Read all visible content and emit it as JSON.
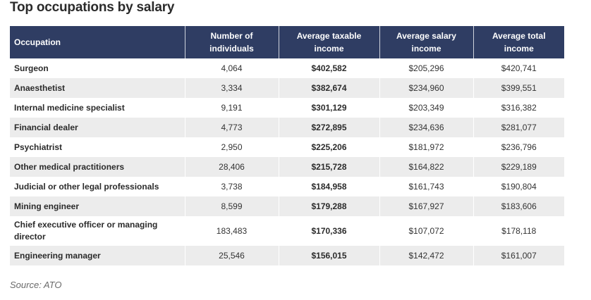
{
  "title": "Top occupations by salary",
  "source": "Source: ATO",
  "chart_data": {
    "type": "table",
    "title": "Top occupations by salary",
    "columns": [
      "Occupation",
      "Number of individuals",
      "Average taxable income",
      "Average salary income",
      "Average total income"
    ],
    "rows": [
      [
        "Surgeon",
        "4,064",
        "$402,582",
        "$205,296",
        "$420,741"
      ],
      [
        "Anaesthetist",
        "3,334",
        "$382,674",
        "$234,960",
        "$399,551"
      ],
      [
        "Internal medicine specialist",
        "9,191",
        "$301,129",
        "$203,349",
        "$316,382"
      ],
      [
        "Financial dealer",
        "4,773",
        "$272,895",
        "$234,636",
        "$281,077"
      ],
      [
        "Psychiatrist",
        "2,950",
        "$225,206",
        "$181,972",
        "$236,796"
      ],
      [
        "Other medical practitioners",
        "28,406",
        "$215,728",
        "$164,822",
        "$229,189"
      ],
      [
        "Judicial or other legal professionals",
        "3,738",
        "$184,958",
        "$161,743",
        "$190,804"
      ],
      [
        "Mining engineer",
        "8,599",
        "$179,288",
        "$167,927",
        "$183,606"
      ],
      [
        "Chief executive officer or managing director",
        "183,483",
        "$170,336",
        "$107,072",
        "$178,118"
      ],
      [
        "Engineering manager",
        "25,546",
        "$156,015",
        "$142,472",
        "$161,007"
      ]
    ],
    "source": "Source: ATO",
    "colors": {
      "header_bg": "#2f3d63",
      "header_text": "#ffffff",
      "stripe": "#ececec"
    }
  }
}
